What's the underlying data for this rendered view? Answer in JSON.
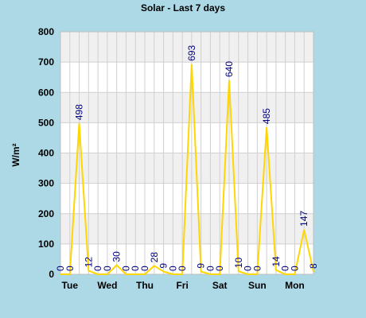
{
  "chart_data": {
    "type": "line",
    "title": "Solar - Last 7 days",
    "y_label": "W/m²",
    "categories": [
      null,
      "Tue",
      null,
      null,
      null,
      "Wed",
      null,
      null,
      null,
      "Thu",
      null,
      null,
      null,
      "Fri",
      null,
      null,
      null,
      "Sat",
      null,
      null,
      null,
      "Sun",
      null,
      null,
      null,
      "Mon",
      null,
      null
    ],
    "series": [
      {
        "name": "Solar",
        "color": "#ffd700",
        "values": [
          0,
          0,
          498,
          12,
          0,
          0,
          30,
          0,
          0,
          0,
          28,
          9,
          0,
          0,
          693,
          9,
          0,
          0,
          640,
          10,
          0,
          0,
          485,
          14,
          0,
          0,
          147,
          8
        ]
      }
    ],
    "ylim": [
      0,
      800
    ],
    "yticks": [
      0,
      100,
      200,
      300,
      400,
      500,
      600,
      700,
      800
    ],
    "grid": true
  }
}
